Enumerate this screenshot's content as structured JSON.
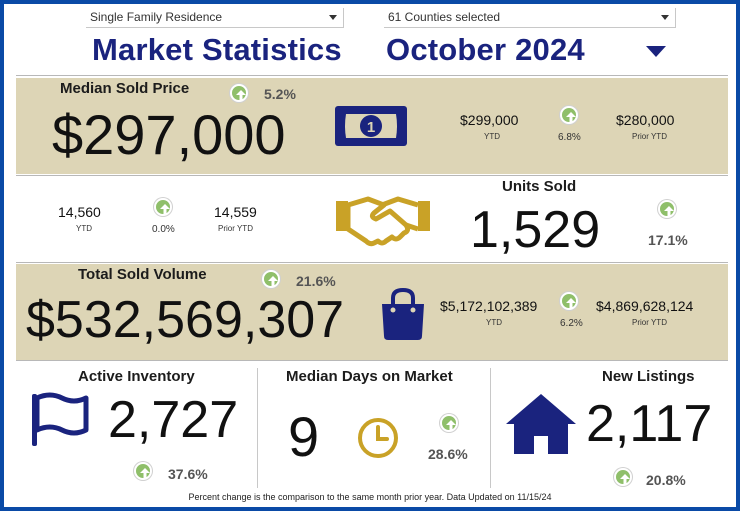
{
  "filters": {
    "property_type": "Single Family Residence",
    "counties": "61 Counties selected"
  },
  "header": {
    "title": "Market Statistics",
    "period": "October 2024"
  },
  "median_sold_price": {
    "label": "Median Sold Price",
    "value": "$297,000",
    "change": "5.2%",
    "ytd_value": "$299,000",
    "ytd_label": "YTD",
    "ytd_change": "6.8%",
    "prior_value": "$280,000",
    "prior_label": "Prior YTD"
  },
  "units_sold": {
    "label": "Units Sold",
    "value": "1,529",
    "change": "17.1%",
    "ytd_value": "14,560",
    "ytd_label": "YTD",
    "ytd_change": "0.0%",
    "prior_value": "14,559",
    "prior_label": "Prior YTD"
  },
  "total_sold_volume": {
    "label": "Total Sold Volume",
    "value": "$532,569,307",
    "change": "21.6%",
    "ytd_value": "$5,172,102,389",
    "ytd_label": "YTD",
    "ytd_change": "6.2%",
    "prior_value": "$4,869,628,124",
    "prior_label": "Prior YTD"
  },
  "active_inventory": {
    "label": "Active Inventory",
    "value": "2,727",
    "change": "37.6%"
  },
  "median_days": {
    "label": "Median Days on Market",
    "value": "9",
    "change": "28.6%"
  },
  "new_listings": {
    "label": "New Listings",
    "value": "2,117",
    "change": "20.8%"
  },
  "footer": "Percent change is the comparison to the same month prior year. Data Updated on 11/15/24",
  "icons": {
    "money": "money-bill-icon",
    "handshake": "handshake-icon",
    "bag": "shopping-bag-icon",
    "flag": "flag-icon",
    "clock": "clock-icon",
    "house": "house-icon",
    "up": "arrow-up-circle-icon"
  },
  "colors": {
    "navy": "#1a237e",
    "gold": "#c9a227",
    "tan": "#ddd5b6",
    "green": "#8fbf6a",
    "border": "#0a4aa6"
  }
}
